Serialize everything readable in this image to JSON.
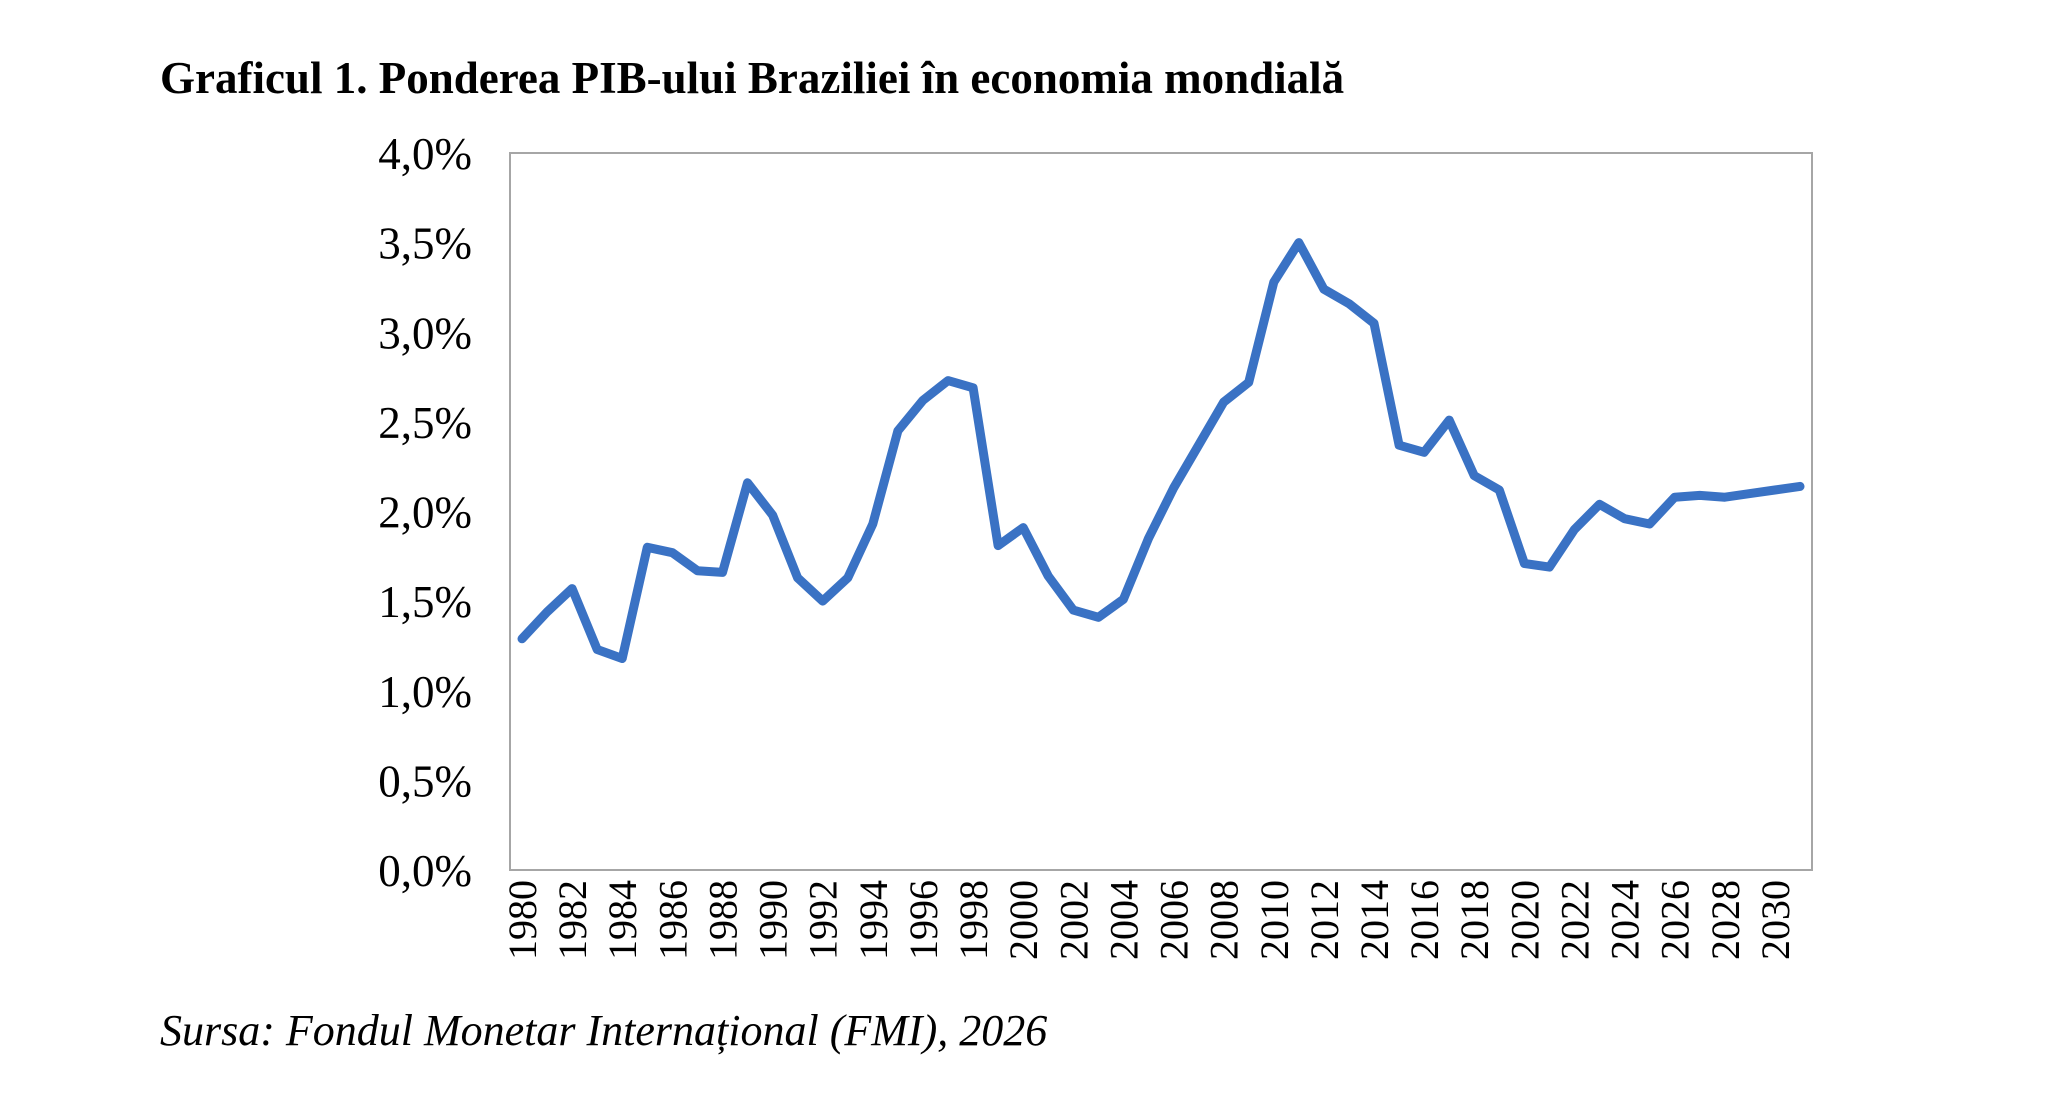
{
  "chart_data": {
    "type": "line",
    "title": "Graficul 1. Ponderea PIB-ului Braziliei în economia mondială",
    "source": "Sursa: Fondul Monetar Internațional (FMI), 2026",
    "xlabel": "",
    "ylabel": "",
    "ylim": [
      0,
      4.0
    ],
    "y_ticks": [
      "0,0%",
      "0,5%",
      "1,0%",
      "1,5%",
      "2,0%",
      "2,5%",
      "3,0%",
      "3,5%",
      "4,0%"
    ],
    "x_tick_labels": [
      "1980",
      "1982",
      "1984",
      "1986",
      "1988",
      "1990",
      "1992",
      "1994",
      "1996",
      "1998",
      "2000",
      "2002",
      "2004",
      "2006",
      "2008",
      "2010",
      "2012",
      "2014",
      "2016",
      "2018",
      "2020",
      "2022",
      "2024",
      "2026",
      "2028",
      "2030"
    ],
    "grid": false,
    "series": [
      {
        "color": "#3a72c4",
        "x": [
          1980,
          1981,
          1982,
          1983,
          1984,
          1985,
          1986,
          1987,
          1988,
          1989,
          1990,
          1991,
          1992,
          1993,
          1994,
          1995,
          1996,
          1997,
          1998,
          1999,
          2000,
          2001,
          2002,
          2003,
          2004,
          2005,
          2006,
          2007,
          2008,
          2009,
          2010,
          2011,
          2012,
          2013,
          2014,
          2015,
          2016,
          2017,
          2018,
          2019,
          2020,
          2021,
          2022,
          2023,
          2024,
          2025,
          2026,
          2027,
          2028,
          2029,
          2030,
          2031
        ],
        "values": [
          1.29,
          1.44,
          1.57,
          1.23,
          1.18,
          1.8,
          1.77,
          1.67,
          1.66,
          2.16,
          1.98,
          1.63,
          1.5,
          1.63,
          1.93,
          2.45,
          2.62,
          2.73,
          2.69,
          1.81,
          1.91,
          1.64,
          1.45,
          1.41,
          1.51,
          1.85,
          2.13,
          2.37,
          2.61,
          2.72,
          3.28,
          3.5,
          3.24,
          3.16,
          3.05,
          2.37,
          2.33,
          2.51,
          2.2,
          2.12,
          1.71,
          1.69,
          1.9,
          2.04,
          1.96,
          1.93,
          2.08,
          2.09,
          2.08,
          2.1,
          2.12,
          2.14
        ]
      }
    ]
  }
}
